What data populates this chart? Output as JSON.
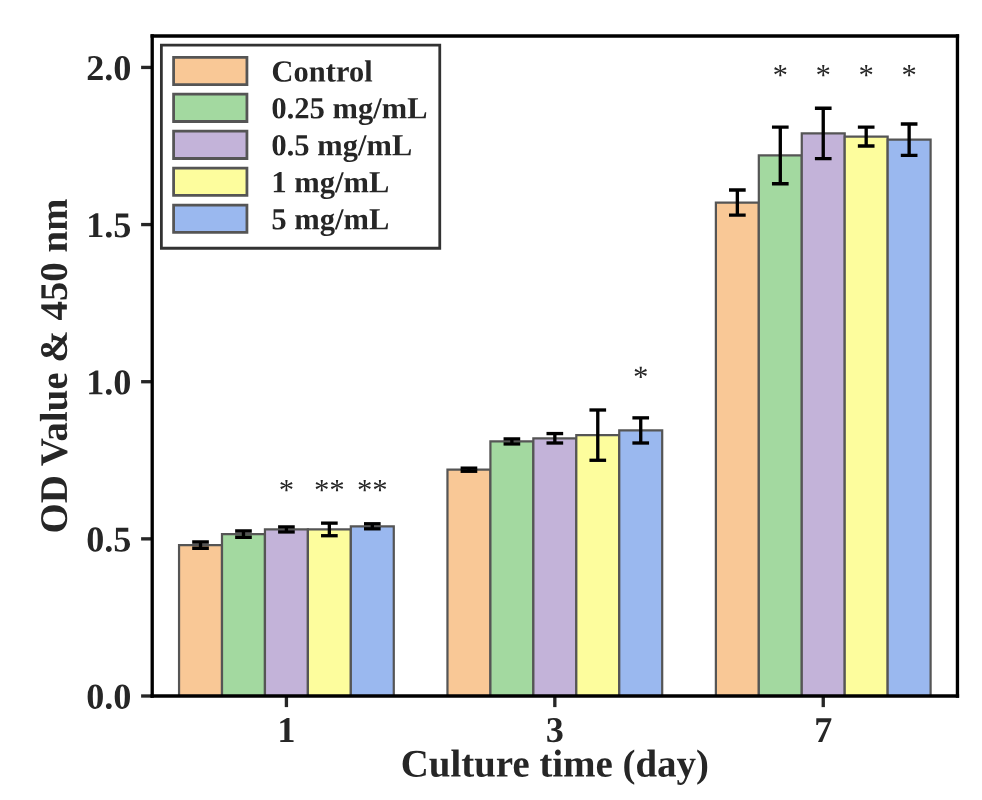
{
  "chart_data": {
    "type": "bar",
    "xlabel": "Culture time (day)",
    "ylabel": "OD Value & 450 nm",
    "categories": [
      "1",
      "3",
      "7"
    ],
    "series": [
      {
        "name": "Control",
        "color": "#f9c896",
        "values": [
          0.48,
          0.72,
          1.57
        ],
        "errors": [
          0.01,
          0.005,
          0.04
        ]
      },
      {
        "name": "0.25 mg/mL",
        "color": "#a3d9a0",
        "values": [
          0.515,
          0.81,
          1.72
        ],
        "errors": [
          0.01,
          0.008,
          0.09
        ],
        "value_labels": [
          null,
          null,
          "*"
        ]
      },
      {
        "name": "0.5 mg/mL",
        "color": "#c3b3d9",
        "values": [
          0.53,
          0.82,
          1.79
        ],
        "errors": [
          0.008,
          0.015,
          0.08
        ],
        "value_labels": [
          "*",
          null,
          "*"
        ]
      },
      {
        "name": "1 mg/mL",
        "color": "#fdfd9d",
        "values": [
          0.53,
          0.83,
          1.78
        ],
        "errors": [
          0.02,
          0.08,
          0.03
        ],
        "value_labels": [
          "**",
          null,
          "*"
        ]
      },
      {
        "name": "5 mg/mL",
        "color": "#9ab8ef",
        "values": [
          0.54,
          0.845,
          1.77
        ],
        "errors": [
          0.008,
          0.04,
          0.05
        ],
        "value_labels": [
          "**",
          "*",
          "*"
        ]
      }
    ],
    "ylim": [
      0,
      2.1
    ],
    "yticks": [
      {
        "value": 0,
        "label": "0.0"
      },
      {
        "value": 0.5,
        "label": "0.5"
      },
      {
        "value": 1,
        "label": "1.0"
      },
      {
        "value": 1.5,
        "label": "1.5"
      },
      {
        "value": 2,
        "label": "2.0"
      }
    ],
    "grid": false,
    "legend": "top left"
  }
}
